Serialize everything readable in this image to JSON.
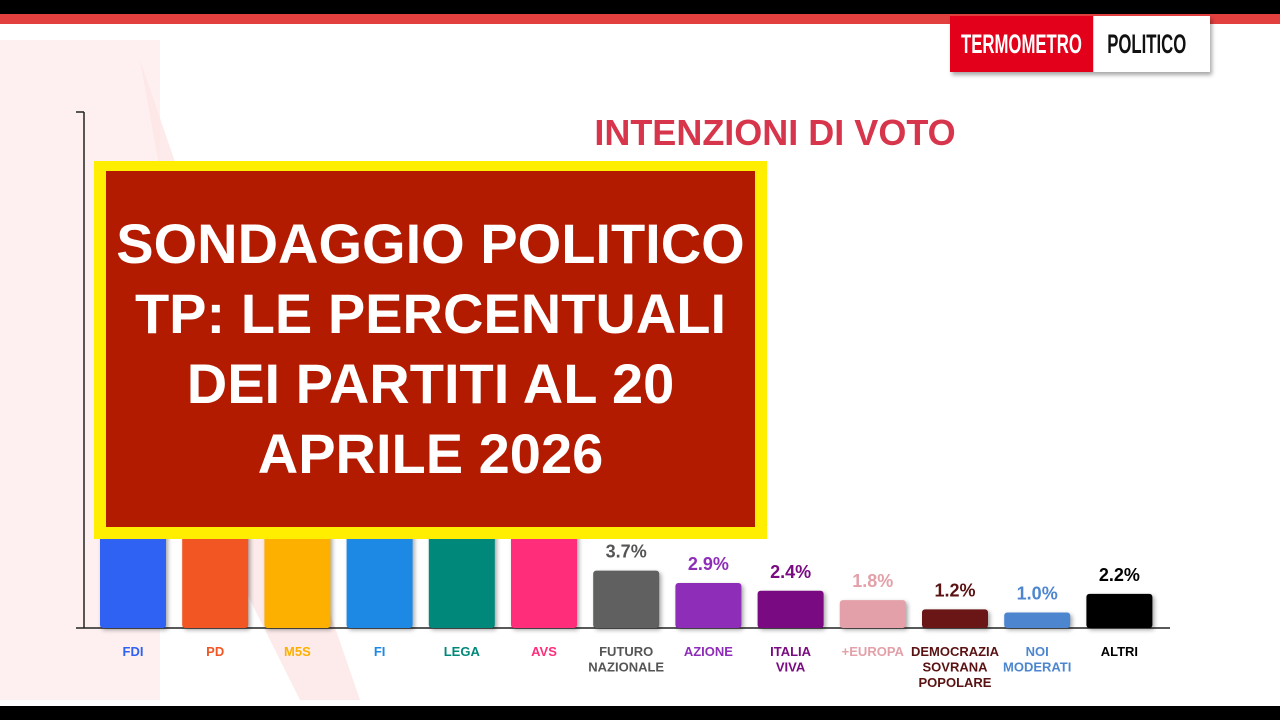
{
  "brand": {
    "logo_left": "TERMOMETRO",
    "logo_right": "POLITICO"
  },
  "headline": "SONDAGGIO POLITICO TP: LE PERCENTUALI DEI PARTITI AL 20 APRILE 2026",
  "colors": {
    "accent": "#e2403f",
    "title": "#d7354b",
    "overlay_bg": "#b31b00",
    "overlay_border": "#ffee00"
  },
  "chart_data": {
    "type": "bar",
    "title": "INTENZIONI DI VOTO",
    "categories": [
      [
        "FDI"
      ],
      [
        "PD"
      ],
      [
        "M5S"
      ],
      [
        "FI"
      ],
      [
        "LEGA"
      ],
      [
        "AVS"
      ],
      [
        "FUTURO",
        "NAZIONALE"
      ],
      [
        "AZIONE"
      ],
      [
        "ITALIA",
        "VIVA"
      ],
      [
        "+EUROPA"
      ],
      [
        "DEMOCRAZIA",
        "SOVRANA",
        "POPOLARE"
      ],
      [
        "NOI",
        "MODERATI"
      ],
      [
        "ALTRI"
      ]
    ],
    "values": [
      null,
      null,
      null,
      null,
      null,
      null,
      3.7,
      2.9,
      2.4,
      1.8,
      1.2,
      1.0,
      2.2
    ],
    "value_labels": [
      "",
      "",
      "",
      "",
      "",
      "",
      "3.7%",
      "2.9%",
      "2.4%",
      "1.8%",
      "1.2%",
      "1.0%",
      "2.2%"
    ],
    "colors": [
      "#2f61f2",
      "#f25622",
      "#fdb000",
      "#1e88e5",
      "#00897b",
      "#ff2d7a",
      "#606060",
      "#8e2db8",
      "#7a0a82",
      "#e3a0a8",
      "#6a1616",
      "#4d86cf",
      "#000000"
    ],
    "label_colors": [
      "#2f61f2",
      "#f25622",
      "#fdb000",
      "#1e88e5",
      "#00897b",
      "#ff2d7a",
      "#555555",
      "#8e2db8",
      "#7a0a82",
      "#e3a0a8",
      "#5a1212",
      "#4d86cf",
      "#000000"
    ],
    "note": "",
    "ylim": [
      0,
      30
    ],
    "grid": false,
    "legend": "none"
  }
}
